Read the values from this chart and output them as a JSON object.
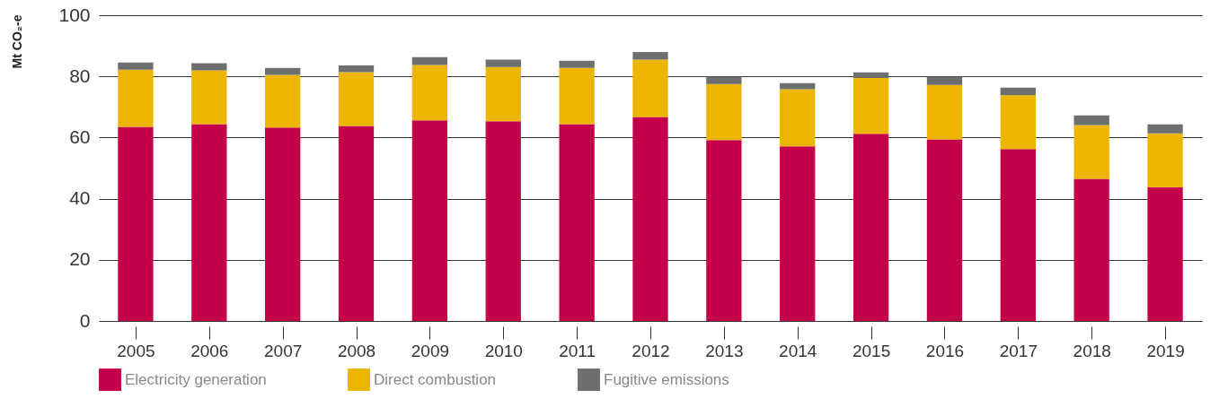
{
  "chart_data": {
    "type": "bar",
    "stacked": true,
    "ylabel": "Mt CO₂-e",
    "categories": [
      "2005",
      "2006",
      "2007",
      "2008",
      "2009",
      "2010",
      "2011",
      "2012",
      "2013",
      "2014",
      "2015",
      "2016",
      "2017",
      "2018",
      "2019"
    ],
    "series": [
      {
        "name": "Electricity generation",
        "color": "#c4004a",
        "values": [
          63.5,
          64.4,
          63.3,
          63.8,
          65.6,
          65.3,
          64.4,
          66.7,
          59.2,
          57.1,
          61.2,
          59.4,
          56.2,
          46.5,
          43.8
        ]
      },
      {
        "name": "Direct combustion",
        "color": "#ecb500",
        "values": [
          18.7,
          17.6,
          17.2,
          17.6,
          18.1,
          17.8,
          18.4,
          18.8,
          18.3,
          18.7,
          18.3,
          17.8,
          17.6,
          17.6,
          17.6
        ]
      },
      {
        "name": "Fugitive emissions",
        "color": "#6d6e6e",
        "values": [
          2.3,
          2.3,
          2.3,
          2.2,
          2.6,
          2.4,
          2.3,
          2.5,
          2.4,
          2.0,
          1.8,
          2.7,
          2.5,
          3.1,
          2.9
        ]
      }
    ],
    "ylim": [
      0,
      100
    ],
    "yticks": [
      0,
      20,
      40,
      60,
      80,
      100
    ],
    "grid": "y",
    "legend": "bottom left"
  }
}
